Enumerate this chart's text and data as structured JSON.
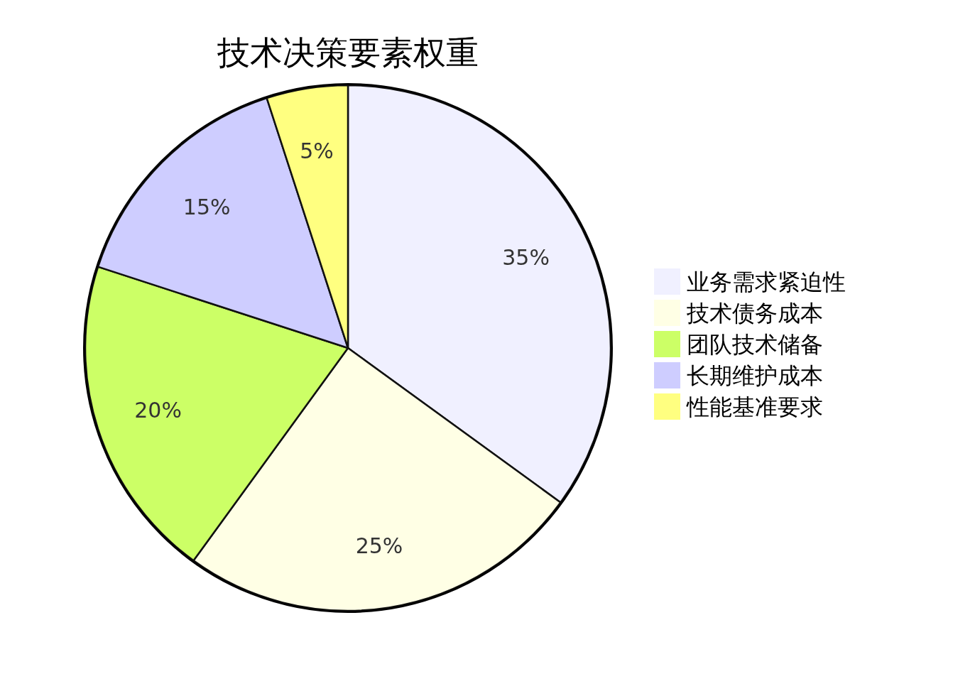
{
  "chart_data": {
    "type": "pie",
    "title": "技术决策要素权重",
    "categories": [
      "业务需求紧迫性",
      "技术债务成本",
      "团队技术储备",
      "长期维护成本",
      "性能基准要求"
    ],
    "values": [
      35,
      25,
      20,
      15,
      5
    ],
    "colors": [
      "#f0f0ff",
      "#ffffe5",
      "#ccff66",
      "#cecdff",
      "#ffff80"
    ],
    "value_labels": [
      "35%",
      "25%",
      "20%",
      "15%",
      "5%"
    ],
    "legend": "right"
  }
}
